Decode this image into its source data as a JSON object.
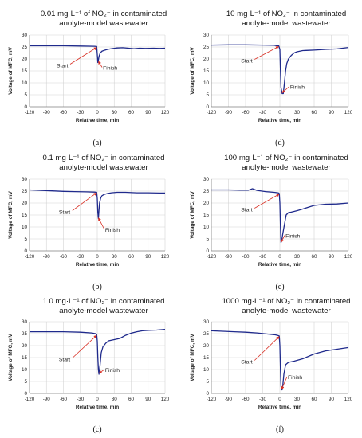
{
  "chart_data": [
    {
      "type": "line",
      "panel_label": "(a)",
      "title_line1": "0.01 mg·L⁻¹ of NO₂⁻ in contaminated",
      "title_line2": "anolyte-model wastewater",
      "xlabel": "Relative time, min",
      "ylabel": "Voltage of MFC, mV",
      "xlim": [
        -120,
        120
      ],
      "ylim": [
        0,
        30
      ],
      "xticks": [
        "-120",
        "-90",
        "-60",
        "-30",
        "0",
        "30",
        "60",
        "90",
        "120"
      ],
      "yticks": [
        "0",
        "5",
        "10",
        "15",
        "20",
        "25",
        "30"
      ],
      "grid": true,
      "annotations": [
        "Start",
        "Finish"
      ],
      "series": [
        {
          "x": [
            -120,
            -90,
            -60,
            -30,
            -5,
            -1,
            0,
            1,
            2,
            3,
            5,
            8,
            12,
            18,
            25,
            35,
            45,
            55,
            65,
            75,
            85,
            100,
            110,
            120
          ],
          "y": [
            25.5,
            25.5,
            25.5,
            25.4,
            25.3,
            25.2,
            22,
            18.5,
            19.5,
            21,
            22.4,
            23.2,
            23.6,
            24,
            24.3,
            24.6,
            24.7,
            24.5,
            24.3,
            24.5,
            24.4,
            24.5,
            24.4,
            24.5
          ]
        }
      ]
    },
    {
      "type": "line",
      "panel_label": "(d)",
      "title_line1": "10 mg·L⁻¹ of NO₂⁻ in contaminated",
      "title_line2": "anolyte-model wastewater",
      "xlabel": "Relative time, min",
      "ylabel": "Voltage of MFC, mV",
      "xlim": [
        -120,
        120
      ],
      "ylim": [
        0,
        30
      ],
      "xticks": [
        "-120",
        "-90",
        "-60",
        "-30",
        "0",
        "30",
        "60",
        "90",
        "120"
      ],
      "yticks": [
        "0",
        "5",
        "10",
        "15",
        "20",
        "25",
        "30"
      ],
      "grid": true,
      "annotations": [
        "Start",
        "Finish"
      ],
      "series": [
        {
          "x": [
            -120,
            -90,
            -60,
            -30,
            -10,
            -5,
            -2,
            0,
            1,
            2,
            4,
            6,
            8,
            10,
            12,
            15,
            20,
            25,
            30,
            40,
            50,
            60,
            80,
            100,
            120
          ],
          "y": [
            25.8,
            25.9,
            25.9,
            25.8,
            25.7,
            25.5,
            25.5,
            24,
            15,
            8,
            5.5,
            5.5,
            10,
            15,
            18,
            20,
            21.5,
            22.5,
            23,
            23.5,
            23.6,
            23.7,
            24,
            24.2,
            24.8
          ]
        }
      ]
    },
    {
      "type": "line",
      "panel_label": "(b)",
      "title_line1": "0.1 mg·L⁻¹ of NO₂⁻ in contaminated",
      "title_line2": "anolyte-model wastewater",
      "xlabel": "Relative time, min",
      "ylabel": "Voltage of MFC, mV",
      "xlim": [
        -120,
        120
      ],
      "ylim": [
        0,
        30
      ],
      "xticks": [
        "-120",
        "-90",
        "-60",
        "-30",
        "0",
        "30",
        "60",
        "90",
        "120"
      ],
      "yticks": [
        "0",
        "5",
        "10",
        "15",
        "20",
        "25",
        "30"
      ],
      "grid": true,
      "annotations": [
        "Start",
        "Finish"
      ],
      "series": [
        {
          "x": [
            -120,
            -100,
            -80,
            -60,
            -40,
            -20,
            -5,
            -1,
            0,
            1,
            2,
            3,
            4,
            6,
            8,
            12,
            18,
            25,
            35,
            50,
            70,
            90,
            110,
            120
          ],
          "y": [
            25.5,
            25.3,
            25.1,
            24.9,
            24.8,
            24.7,
            24.6,
            24.5,
            22,
            16,
            13.5,
            17,
            20,
            22,
            23,
            23.6,
            24,
            24.3,
            24.5,
            24.5,
            24.3,
            24.3,
            24.2,
            24.2
          ]
        }
      ]
    },
    {
      "type": "line",
      "panel_label": "(e)",
      "title_line1": "100 mg·L⁻¹ of NO₂⁻ in contaminated",
      "title_line2": "anolyte-model wastewater",
      "xlabel": "Relative time, min",
      "ylabel": "Voltage of MFC, mV",
      "xlim": [
        -120,
        120
      ],
      "ylim": [
        0,
        30
      ],
      "xticks": [
        "-120",
        "-90",
        "-60",
        "-30",
        "0",
        "30",
        "60",
        "90",
        "120"
      ],
      "yticks": [
        "0",
        "5",
        "10",
        "15",
        "20",
        "25",
        "30"
      ],
      "grid": true,
      "annotations": [
        "Start",
        "Finish"
      ],
      "series": [
        {
          "x": [
            -120,
            -90,
            -70,
            -55,
            -48,
            -40,
            -25,
            -10,
            -3,
            -1,
            0,
            1,
            2,
            3,
            5,
            8,
            11,
            15,
            20,
            30,
            40,
            60,
            80,
            100,
            120
          ],
          "y": [
            25.5,
            25.5,
            25.4,
            25.4,
            26,
            25.3,
            24.8,
            24.5,
            24.3,
            24,
            20,
            10,
            3.5,
            4,
            7,
            11,
            15,
            16,
            16.2,
            16.8,
            17.5,
            19,
            19.5,
            19.6,
            20
          ]
        }
      ]
    },
    {
      "type": "line",
      "panel_label": "(c)",
      "title_line1": "1.0 mg·L⁻¹ of NO₂⁻ in contaminated",
      "title_line2": "anolyte-model wastewater",
      "xlabel": "Relative time, min",
      "ylabel": "Voltage of MFC, mV",
      "xlim": [
        -120,
        120
      ],
      "ylim": [
        0,
        30
      ],
      "xticks": [
        "-120",
        "-90",
        "-60",
        "-30",
        "0",
        "30",
        "60",
        "90",
        "120"
      ],
      "yticks": [
        "0",
        "5",
        "10",
        "15",
        "20",
        "25",
        "30"
      ],
      "grid": true,
      "annotations": [
        "Start",
        "Finish"
      ],
      "series": [
        {
          "x": [
            -120,
            -90,
            -60,
            -30,
            -10,
            -3,
            -1,
            0,
            1,
            2,
            3,
            5,
            7,
            10,
            15,
            20,
            30,
            40,
            50,
            60,
            70,
            80,
            90,
            105,
            120
          ],
          "y": [
            25.8,
            25.8,
            25.8,
            25.6,
            25.3,
            25,
            24.5,
            22,
            15,
            10,
            8,
            12,
            17,
            19.5,
            21,
            22,
            22.5,
            23,
            24.3,
            25.2,
            25.8,
            26.2,
            26.4,
            26.5,
            26.8
          ]
        }
      ]
    },
    {
      "type": "line",
      "panel_label": "(f)",
      "title_line1": "1000 mg·L⁻¹ of NO₂⁻ in contaminated",
      "title_line2": "anolyte-model wastewater",
      "xlabel": "Relative time, min",
      "ylabel": "Voltage of MFC, mV",
      "xlim": [
        -120,
        120
      ],
      "ylim": [
        0,
        30
      ],
      "xticks": [
        "-120",
        "-90",
        "-60",
        "-30",
        "0",
        "30",
        "60",
        "90",
        "120"
      ],
      "yticks": [
        "0",
        "5",
        "10",
        "15",
        "20",
        "25",
        "30"
      ],
      "grid": true,
      "annotations": [
        "Start",
        "Finish"
      ],
      "series": [
        {
          "x": [
            -120,
            -100,
            -80,
            -60,
            -40,
            -20,
            -8,
            -3,
            -1,
            0,
            1,
            2,
            3,
            4,
            5,
            7,
            10,
            15,
            25,
            40,
            60,
            80,
            100,
            120
          ],
          "y": [
            26.2,
            26,
            25.8,
            25.6,
            25.3,
            24.8,
            24.5,
            24.2,
            24,
            20,
            10,
            3,
            1.5,
            1.5,
            3,
            8,
            12,
            13,
            13.5,
            14.5,
            16.5,
            17.8,
            18.5,
            19.2
          ]
        }
      ]
    }
  ]
}
